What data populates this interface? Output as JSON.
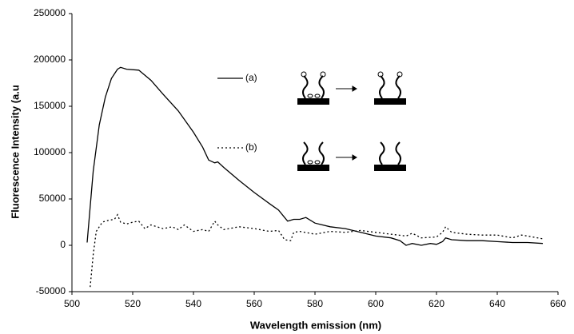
{
  "chart_data": {
    "type": "line",
    "xlabel": "Wavelength emission (nm)",
    "ylabel": "Fluorescence Intensity (a.u",
    "xlim": [
      500,
      660
    ],
    "xticks": [
      500,
      520,
      540,
      560,
      580,
      600,
      620,
      640,
      660
    ],
    "ylim": [
      -50000,
      250000
    ],
    "yticks": [
      -50000,
      0,
      50000,
      100000,
      150000,
      200000,
      250000
    ],
    "series": [
      {
        "name": "(a)",
        "color": "#000000",
        "dash": "solid",
        "x": [
          505,
          507,
          509,
          511,
          513,
          515,
          516,
          518,
          522,
          526,
          530,
          535,
          540,
          543,
          545,
          547,
          548,
          550,
          555,
          560,
          565,
          568,
          570,
          571,
          573,
          575,
          577,
          580,
          585,
          590,
          595,
          600,
          605,
          608,
          610,
          612,
          615,
          618,
          620,
          622,
          623,
          625,
          630,
          635,
          640,
          645,
          650,
          655
        ],
        "values": [
          3000,
          80000,
          130000,
          160000,
          180000,
          190000,
          192000,
          190000,
          189000,
          178000,
          163000,
          145000,
          122000,
          106000,
          92000,
          89000,
          90000,
          84000,
          70000,
          57000,
          45000,
          38000,
          30000,
          26000,
          28000,
          28000,
          30000,
          24000,
          20000,
          18000,
          14000,
          10000,
          8000,
          5000,
          0,
          2000,
          0,
          2000,
          1000,
          4000,
          8000,
          6000,
          5000,
          5000,
          4000,
          3000,
          3000,
          2000
        ]
      },
      {
        "name": "(b)",
        "color": "#000000",
        "dash": "dotted",
        "x": [
          506,
          507,
          508,
          510,
          512,
          514,
          515,
          516,
          518,
          520,
          522,
          524,
          526,
          528,
          530,
          533,
          535,
          537,
          540,
          543,
          545,
          547,
          548,
          550,
          555,
          560,
          565,
          568,
          570,
          572,
          573,
          575,
          580,
          585,
          590,
          595,
          600,
          605,
          610,
          612,
          615,
          620,
          622,
          623,
          625,
          630,
          635,
          640,
          645,
          648,
          650,
          655
        ],
        "values": [
          -45000,
          -10000,
          15000,
          25000,
          27000,
          28000,
          33000,
          25000,
          23000,
          25000,
          26000,
          18000,
          22000,
          20000,
          18000,
          20000,
          17000,
          22000,
          15000,
          17000,
          15000,
          26000,
          22000,
          17000,
          20000,
          18000,
          15000,
          16000,
          6000,
          5000,
          14000,
          15000,
          12000,
          15000,
          14000,
          16000,
          14000,
          12000,
          10000,
          13000,
          8000,
          9000,
          14000,
          20000,
          14000,
          12000,
          11000,
          11000,
          8000,
          11000,
          10000,
          7000
        ]
      }
    ]
  }
}
